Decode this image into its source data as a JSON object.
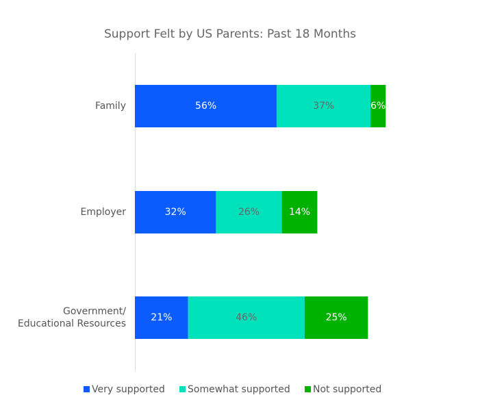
{
  "chart_data": {
    "type": "stacked-bar-horizontal",
    "title": "Support Felt by US Parents: Past 18 Months",
    "categories": [
      "Family",
      "Employer",
      "Government/\nEducational Resources"
    ],
    "series": [
      {
        "name": "Very supported",
        "color": "#0a5cff",
        "label_color": "#ffffff",
        "values": [
          56,
          32,
          21
        ],
        "value_labels": [
          "56%",
          "32%",
          "21%"
        ]
      },
      {
        "name": "Somewhat supported",
        "color": "#00e2bb",
        "label_color": "#666666",
        "values": [
          37,
          26,
          46
        ],
        "value_labels": [
          "37%",
          "26%",
          "46%"
        ]
      },
      {
        "name": "Not supported",
        "color": "#00b200",
        "label_color": "#ffffff",
        "values": [
          6,
          14,
          25
        ],
        "value_labels": [
          "6%",
          "14%",
          "25%"
        ]
      }
    ],
    "xlim": [
      0,
      100
    ]
  }
}
